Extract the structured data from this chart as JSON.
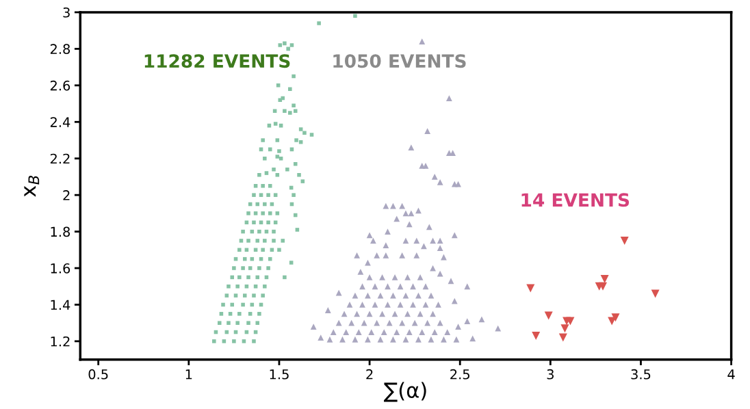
{
  "chart_data": {
    "type": "scatter",
    "xlabel": "∑(α)",
    "ylabel": "x$_{B}$",
    "xlim": [
      0.4,
      4
    ],
    "ylim": [
      1.1,
      3
    ],
    "xticks": [
      0.5,
      1,
      1.5,
      2,
      2.5,
      3,
      3.5,
      4
    ],
    "yticks": [
      1.2,
      1.4,
      1.6,
      1.8,
      2,
      2.2,
      2.4,
      2.6,
      2.8,
      3
    ],
    "grid": false,
    "legend": false,
    "annotations": [
      "11282 EVENTS",
      "1050 EVENTS",
      "14 EVENTS"
    ],
    "series": [
      {
        "color": "#86c3a5",
        "marker": "square",
        "x": [
          1.14,
          1.195,
          1.25,
          1.305,
          1.36,
          1.15,
          1.21,
          1.26,
          1.32,
          1.37,
          1.17,
          1.22,
          1.27,
          1.33,
          1.38,
          1.18,
          1.23,
          1.28,
          1.34,
          1.39,
          1.19,
          1.24,
          1.3,
          1.35,
          1.4,
          1.21,
          1.26,
          1.31,
          1.36,
          1.41,
          1.22,
          1.27,
          1.32,
          1.37,
          1.42,
          1.24,
          1.28,
          1.33,
          1.38,
          1.43,
          1.25,
          1.3,
          1.34,
          1.39,
          1.44,
          1.26,
          1.31,
          1.35,
          1.4,
          1.45,
          1.28,
          1.32,
          1.37,
          1.41,
          1.46,
          1.29,
          1.33,
          1.38,
          1.42,
          1.47,
          1.3,
          1.35,
          1.39,
          1.43,
          1.47,
          1.32,
          1.36,
          1.4,
          1.44,
          1.48,
          1.33,
          1.37,
          1.41,
          1.45,
          1.49,
          1.34,
          1.38,
          1.42,
          1.46,
          1.36,
          1.4,
          1.44,
          1.48,
          1.37,
          1.41,
          1.45,
          1.92,
          1.72,
          1.505,
          1.53,
          1.55,
          1.57,
          1.58,
          1.495,
          1.56,
          1.505,
          1.52,
          1.58,
          1.476,
          1.53,
          1.56,
          1.59,
          1.445,
          1.48,
          1.51,
          1.62,
          1.64,
          1.68,
          1.41,
          1.49,
          1.595,
          1.62,
          1.4,
          1.45,
          1.5,
          1.57,
          1.42,
          1.49,
          1.51,
          1.59,
          1.47,
          1.545,
          1.39,
          1.43,
          1.49,
          1.61,
          1.63,
          1.567,
          1.58,
          1.57,
          1.59,
          1.6,
          1.567,
          1.5,
          1.52,
          1.53
        ],
        "values": [
          1.2,
          1.2,
          1.2,
          1.2,
          1.2,
          1.25,
          1.25,
          1.25,
          1.25,
          1.25,
          1.3,
          1.3,
          1.3,
          1.3,
          1.3,
          1.35,
          1.35,
          1.35,
          1.35,
          1.35,
          1.4,
          1.4,
          1.4,
          1.4,
          1.4,
          1.45,
          1.45,
          1.45,
          1.45,
          1.45,
          1.5,
          1.5,
          1.5,
          1.5,
          1.5,
          1.55,
          1.55,
          1.55,
          1.55,
          1.55,
          1.6,
          1.6,
          1.6,
          1.6,
          1.6,
          1.65,
          1.65,
          1.65,
          1.65,
          1.65,
          1.7,
          1.7,
          1.7,
          1.7,
          1.7,
          1.75,
          1.75,
          1.75,
          1.75,
          1.75,
          1.8,
          1.8,
          1.8,
          1.8,
          1.8,
          1.85,
          1.85,
          1.85,
          1.85,
          1.85,
          1.9,
          1.9,
          1.9,
          1.9,
          1.9,
          1.95,
          1.95,
          1.95,
          1.95,
          2.0,
          2.0,
          2.0,
          2.0,
          2.05,
          2.05,
          2.05,
          2.98,
          2.94,
          2.82,
          2.83,
          2.8,
          2.82,
          2.65,
          2.6,
          2.58,
          2.52,
          2.53,
          2.49,
          2.46,
          2.46,
          2.45,
          2.46,
          2.38,
          2.39,
          2.38,
          2.36,
          2.34,
          2.33,
          2.3,
          2.3,
          2.3,
          2.29,
          2.25,
          2.25,
          2.24,
          2.25,
          2.2,
          2.21,
          2.2,
          2.17,
          2.14,
          2.14,
          2.11,
          2.12,
          2.11,
          2.11,
          2.075,
          2.04,
          2.0,
          1.95,
          1.89,
          1.81,
          1.63,
          1.7,
          1.75,
          1.55
        ]
      },
      {
        "color": "#aaa7c0",
        "marker": "triangle",
        "x": [
          1.78,
          1.85,
          1.92,
          1.99,
          2.06,
          2.13,
          2.2,
          2.27,
          2.34,
          2.41,
          2.48,
          1.8,
          1.87,
          1.94,
          2.01,
          2.08,
          2.15,
          2.22,
          2.29,
          2.36,
          2.43,
          1.83,
          1.9,
          1.97,
          2.04,
          2.11,
          2.18,
          2.25,
          2.32,
          2.39,
          1.86,
          1.93,
          2.0,
          2.07,
          2.14,
          2.21,
          2.28,
          2.35,
          1.89,
          1.96,
          2.03,
          2.1,
          2.17,
          2.24,
          2.31,
          2.38,
          1.92,
          1.99,
          2.06,
          2.13,
          2.2,
          2.27,
          2.34,
          1.96,
          2.03,
          2.1,
          2.17,
          2.24,
          2.31,
          2.0,
          2.07,
          2.14,
          2.21,
          2.28,
          2.44,
          2.29,
          2.32,
          2.23,
          2.44,
          2.46,
          2.29,
          2.31,
          2.36,
          2.39,
          2.47,
          2.49,
          2.09,
          2.13,
          2.18,
          2.2,
          2.23,
          2.27,
          2.15,
          2.22,
          2.33,
          2.47,
          2.0,
          2.1,
          2.02,
          2.09,
          2.2,
          2.26,
          2.35,
          2.39,
          2.3,
          2.39,
          1.93,
          2.04,
          2.09,
          2.18,
          2.26,
          2.41,
          1.95,
          1.99,
          2.35,
          2.39,
          2.45,
          2.54,
          1.83,
          1.77,
          1.69,
          1.73,
          2.47,
          2.54,
          2.62,
          2.71,
          2.57,
          2.49
        ],
        "values": [
          1.21,
          1.21,
          1.21,
          1.21,
          1.21,
          1.21,
          1.21,
          1.21,
          1.21,
          1.21,
          1.21,
          1.25,
          1.25,
          1.25,
          1.25,
          1.25,
          1.25,
          1.25,
          1.25,
          1.25,
          1.25,
          1.3,
          1.3,
          1.3,
          1.3,
          1.3,
          1.3,
          1.3,
          1.3,
          1.3,
          1.35,
          1.35,
          1.35,
          1.35,
          1.35,
          1.35,
          1.35,
          1.35,
          1.4,
          1.4,
          1.4,
          1.4,
          1.4,
          1.4,
          1.4,
          1.4,
          1.45,
          1.45,
          1.45,
          1.45,
          1.45,
          1.45,
          1.45,
          1.5,
          1.5,
          1.5,
          1.5,
          1.5,
          1.5,
          1.55,
          1.55,
          1.55,
          1.55,
          1.55,
          2.53,
          2.84,
          2.35,
          2.26,
          2.23,
          2.23,
          2.16,
          2.16,
          2.1,
          2.07,
          2.06,
          2.06,
          1.94,
          1.94,
          1.94,
          1.9,
          1.9,
          1.915,
          1.87,
          1.84,
          1.825,
          1.78,
          1.78,
          1.8,
          1.75,
          1.725,
          1.75,
          1.75,
          1.75,
          1.75,
          1.72,
          1.71,
          1.67,
          1.67,
          1.67,
          1.67,
          1.67,
          1.66,
          1.58,
          1.63,
          1.6,
          1.57,
          1.53,
          1.5,
          1.465,
          1.37,
          1.28,
          1.22,
          1.42,
          1.31,
          1.32,
          1.27,
          1.215,
          1.28
        ]
      },
      {
        "color": "#d9534f",
        "marker": "triangle",
        "x": [
          2.89,
          2.92,
          2.99,
          3.07,
          3.08,
          3.09,
          3.11,
          3.27,
          3.29,
          3.3,
          3.34,
          3.36,
          3.58,
          3.41
        ],
        "values": [
          1.49,
          1.23,
          1.34,
          1.22,
          1.27,
          1.31,
          1.31,
          1.5,
          1.5,
          1.54,
          1.31,
          1.33,
          1.46,
          1.75
        ]
      }
    ]
  }
}
